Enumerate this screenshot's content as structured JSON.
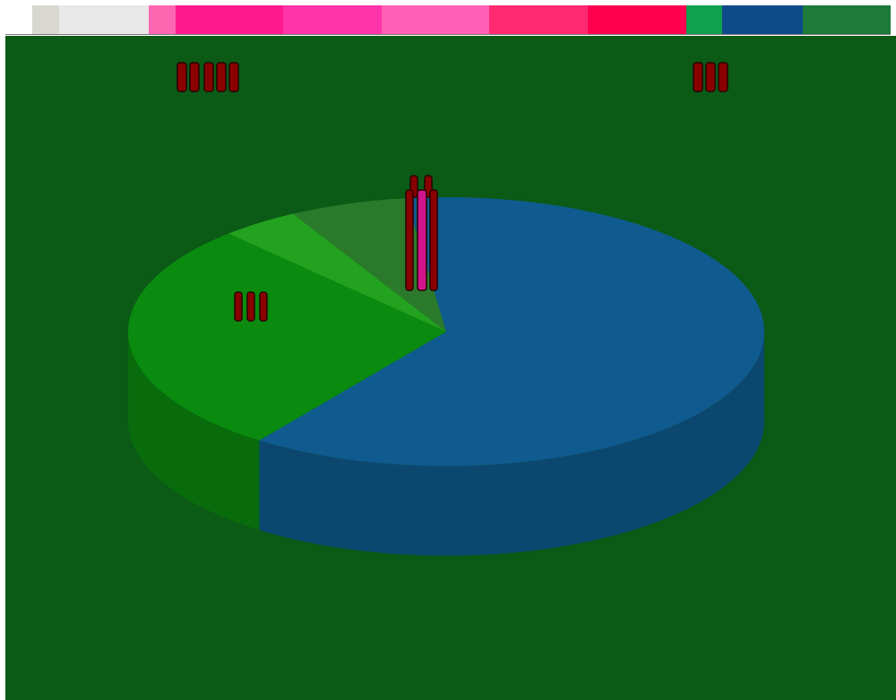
{
  "colors": {
    "background": "#0b5a16",
    "pie_blue": "#0f5b8f",
    "pie_green": "#0a8b0f",
    "pie_light_green": "#22a21f",
    "mark_red": "#8a0000",
    "mark_magenta": "#d0148c",
    "strip": [
      "#ffffff",
      "#d8d8d0",
      "#e8e8e8",
      "#ff66b2",
      "#ff1a8c",
      "#ff33aa",
      "#ff5fb4",
      "#ff2a72",
      "#ff0050",
      "#10a050",
      "#0f4a8a",
      "#1c7a3a"
    ]
  },
  "chart_data": {
    "type": "pie",
    "title": "",
    "series": [
      {
        "values": [
          60,
          28,
          4,
          6,
          2
        ]
      }
    ],
    "slice_colors": [
      "#0f5b8f",
      "#0a8b0f",
      "#22a21f",
      "#2b7a2b",
      "#0f5b8f"
    ],
    "legend": "none",
    "three_d": true
  }
}
